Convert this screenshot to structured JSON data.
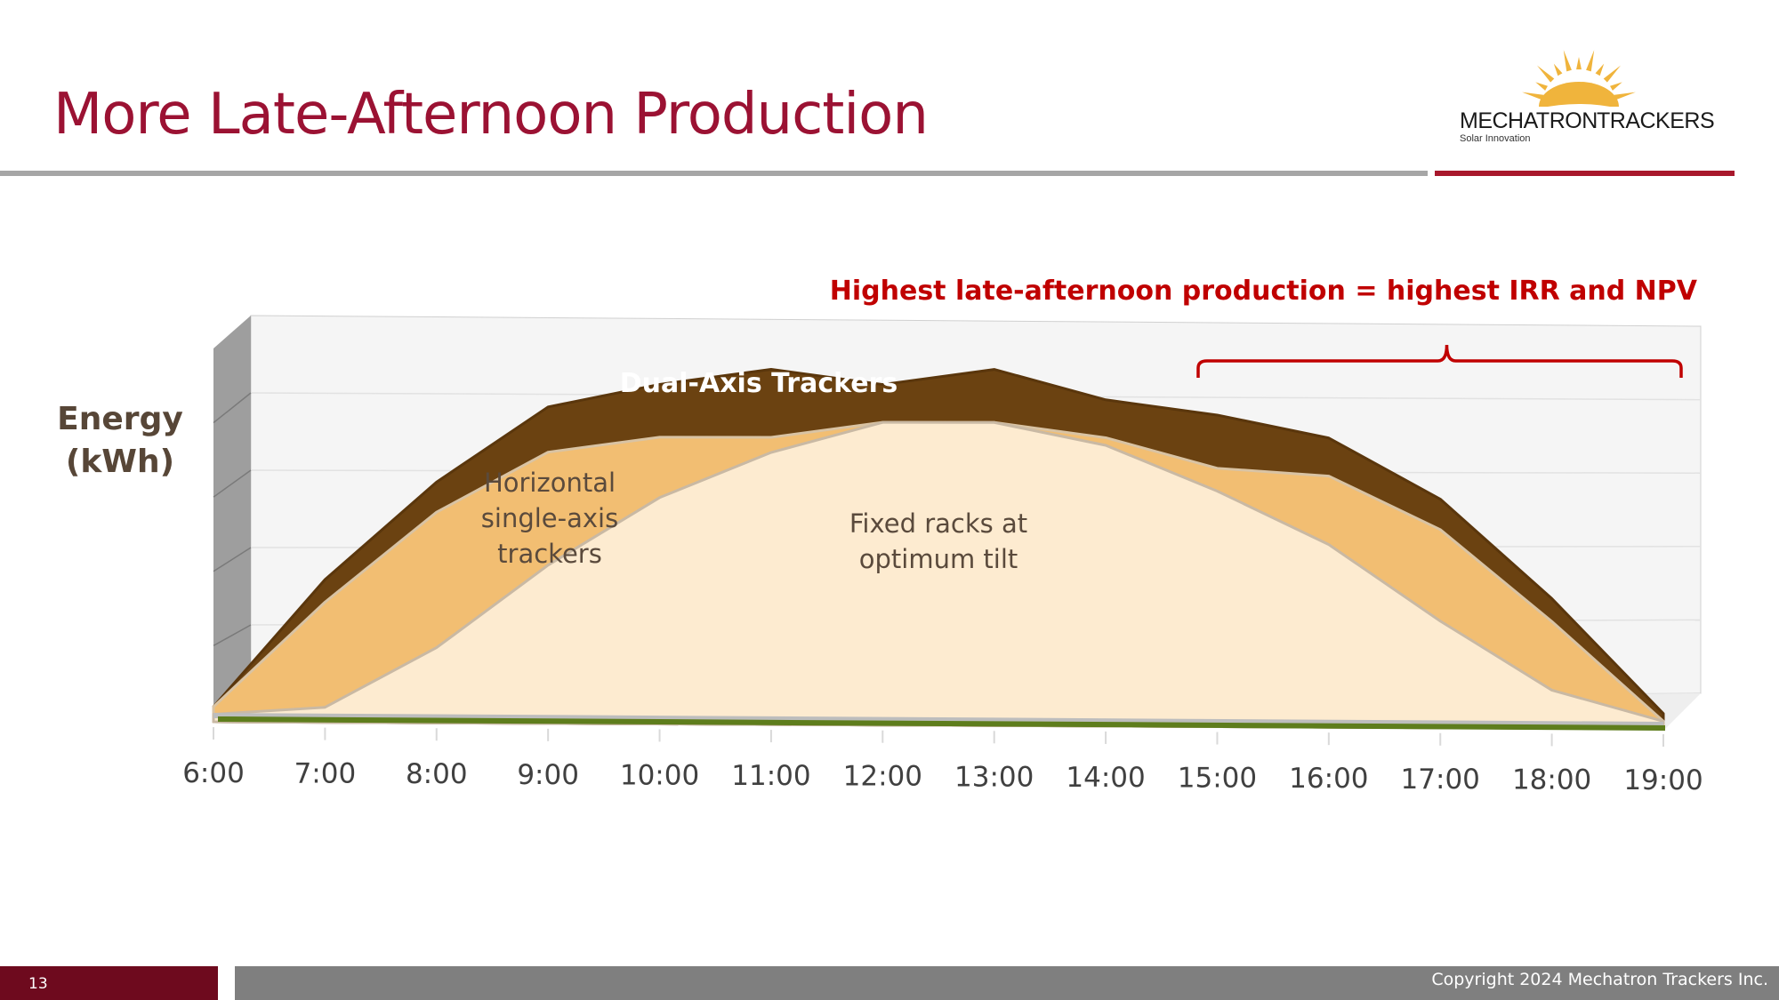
{
  "slide": {
    "title": "More Late-Afternoon Production",
    "page_number": "13",
    "copyright": "Copyright 2024 Mechatron Trackers Inc."
  },
  "logo": {
    "word1": "MECHATRON",
    "word2": "TRACKERS",
    "tagline": "Solar Innovation",
    "sun_color": "#f0b43c"
  },
  "colors": {
    "title": "#9b1233",
    "dual_axis": "#6b4211",
    "single_axis": "#f2be72",
    "fixed": "#fdebd0",
    "callout": "#c00000"
  },
  "chart_data": {
    "type": "area",
    "ylabel": "Energy (kWh)",
    "x": [
      "6:00",
      "7:00",
      "8:00",
      "9:00",
      "10:00",
      "11:00",
      "12:00",
      "13:00",
      "14:00",
      "15:00",
      "16:00",
      "17:00",
      "18:00",
      "19:00"
    ],
    "ylim": [
      0,
      5
    ],
    "grid": true,
    "series": [
      {
        "name": "Dual-Axis Trackers",
        "values": [
          0.2,
          1.9,
          3.2,
          4.2,
          4.5,
          4.7,
          4.5,
          4.7,
          4.3,
          4.1,
          3.8,
          3.0,
          1.7,
          0.2
        ]
      },
      {
        "name": "Horizontal single-axis trackers",
        "values": [
          0.2,
          1.6,
          2.8,
          3.6,
          3.8,
          3.8,
          4.0,
          4.0,
          3.8,
          3.4,
          3.3,
          2.6,
          1.4,
          0.1
        ]
      },
      {
        "name": "Fixed racks at optimum tilt",
        "values": [
          0.1,
          0.2,
          1.0,
          2.1,
          3.0,
          3.6,
          4.0,
          4.0,
          3.7,
          3.1,
          2.4,
          1.4,
          0.5,
          0.1
        ]
      }
    ],
    "annotation": "Highest late-afternoon production = highest IRR and NPV",
    "annotation_range": [
      "14:50",
      "19:00"
    ]
  }
}
